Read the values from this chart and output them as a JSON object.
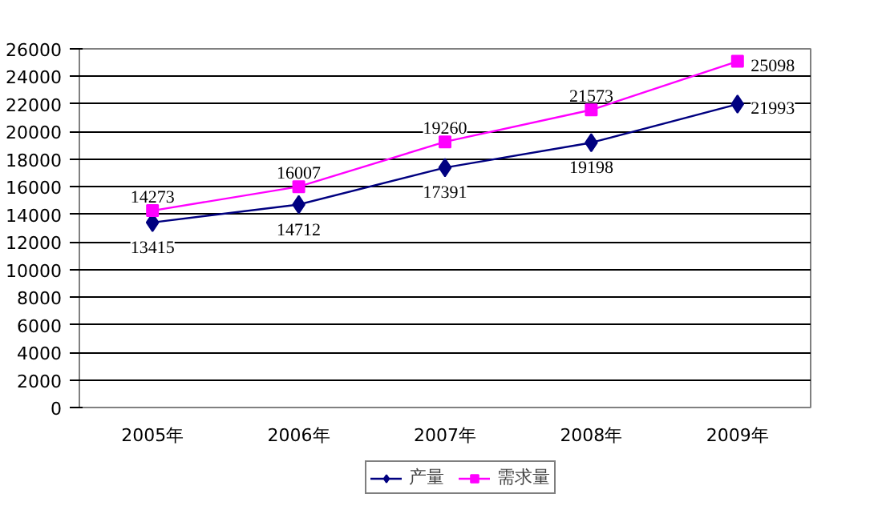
{
  "chart_data": {
    "type": "line",
    "categories": [
      "2005年",
      "2006年",
      "2007年",
      "2008年",
      "2009年"
    ],
    "series": [
      {
        "name": "产量",
        "color": "#000080",
        "values": [
          13415,
          14712,
          17391,
          19198,
          21993
        ],
        "marker": "diamond"
      },
      {
        "name": "需求量",
        "color": "#ff00ff",
        "values": [
          14273,
          16007,
          19260,
          21573,
          25098
        ],
        "marker": "square"
      }
    ],
    "ylim": [
      0,
      26000
    ],
    "yticks": [
      0,
      2000,
      4000,
      6000,
      8000,
      10000,
      12000,
      14000,
      16000,
      18000,
      20000,
      22000,
      24000,
      26000
    ],
    "grid": "y",
    "legend": "bottom",
    "data_labels": true,
    "line_style": "solid"
  }
}
